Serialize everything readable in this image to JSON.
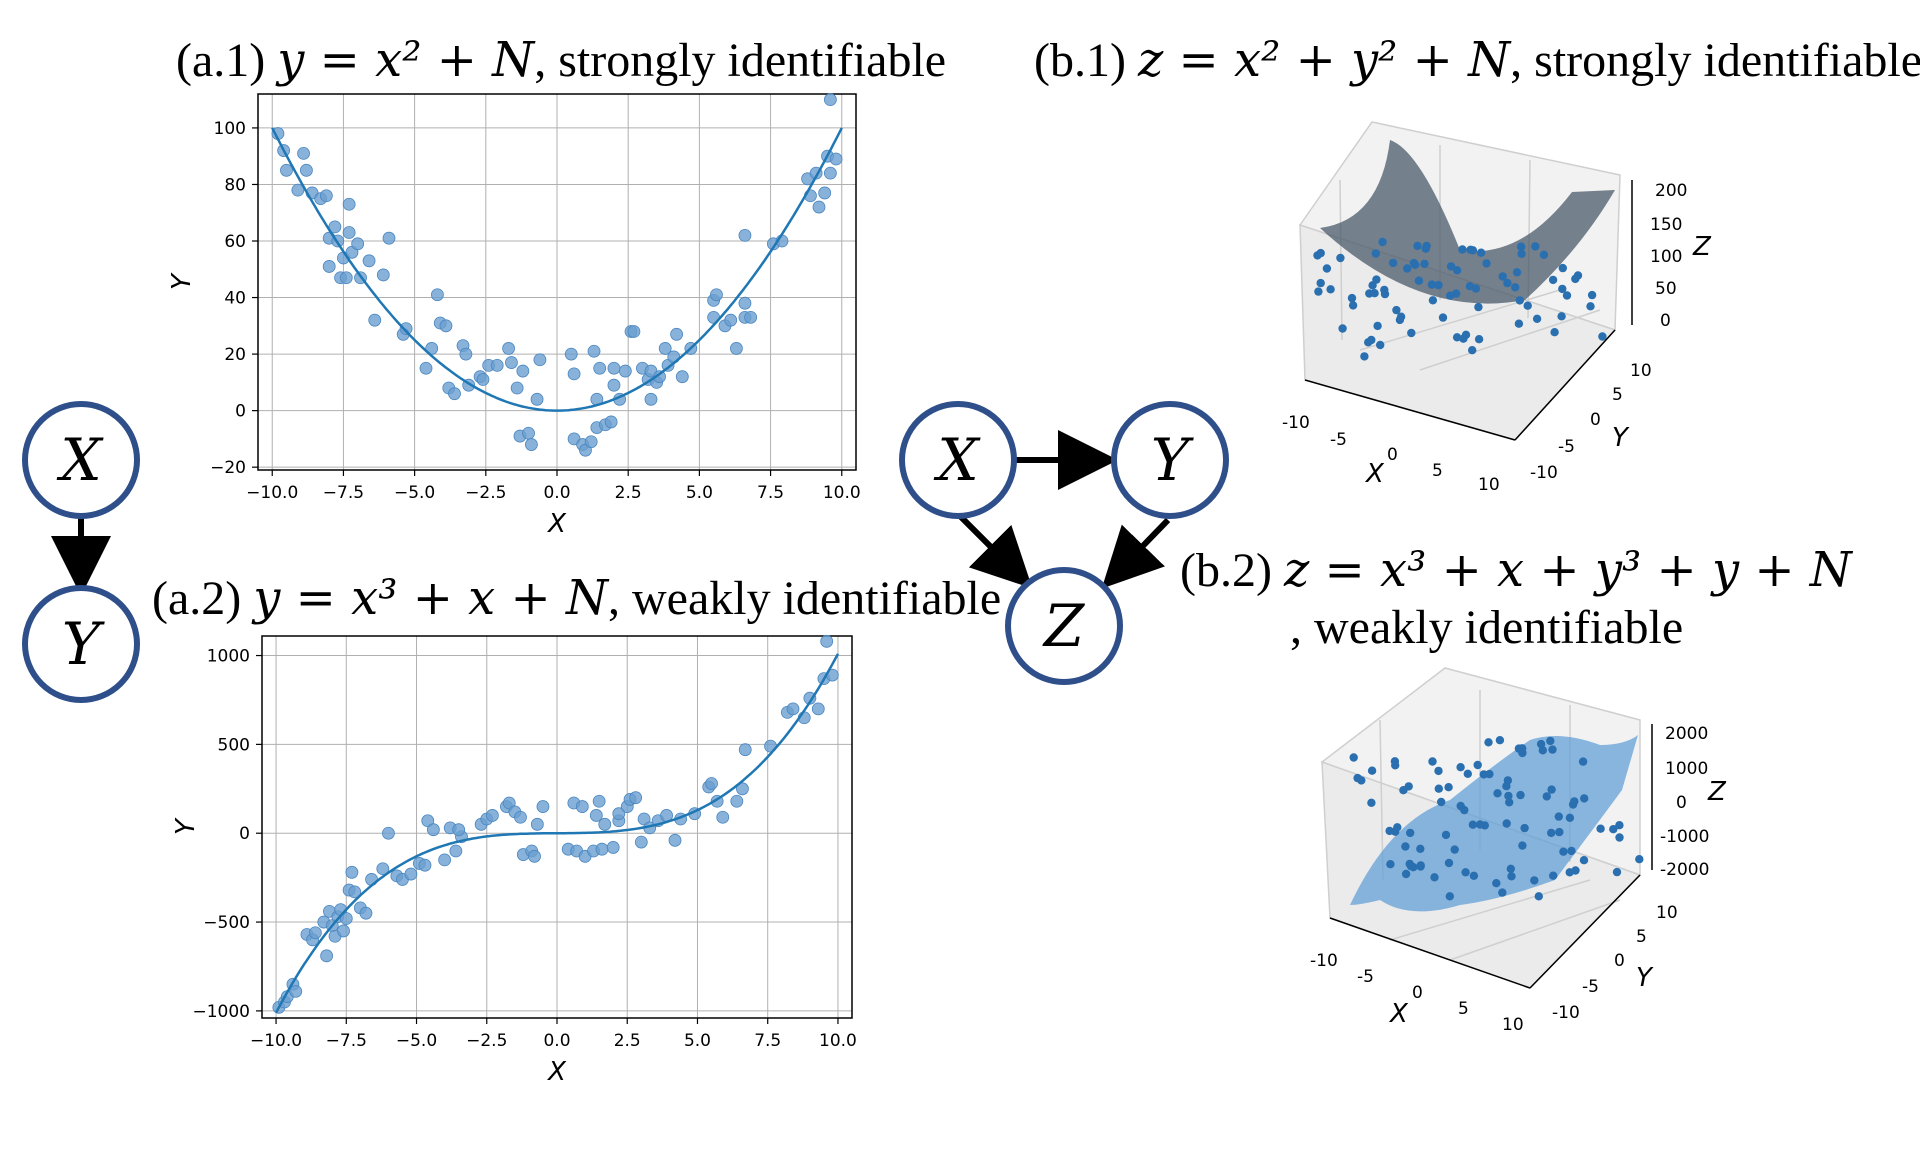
{
  "titles": {
    "a1": {
      "label": "(a.1)",
      "eq": "y = x² + N",
      "tail": ", strongly identifiable"
    },
    "a2": {
      "label": "(a.2)",
      "eq": "y = x³ + x + N",
      "tail": ", weakly identifiable"
    },
    "b1": {
      "label": "(b.1)",
      "eq": "z = x² + y² + N",
      "tail": ", strongly identifiable"
    },
    "b2": {
      "label": "(b.2)",
      "eq": "z = x³ + x + y³ + y + N",
      "tail": ", weakly identifiable"
    }
  },
  "graph_a": {
    "nodes": [
      "X",
      "Y"
    ],
    "edges": [
      [
        "X",
        "Y"
      ]
    ]
  },
  "graph_b": {
    "nodes": [
      "X",
      "Y",
      "Z"
    ],
    "edges": [
      [
        "X",
        "Y"
      ],
      [
        "X",
        "Z"
      ],
      [
        "Y",
        "Z"
      ]
    ]
  },
  "colors": {
    "curve": "#1f77b4",
    "point": "#6a9fd0",
    "node_border": "#2f4f8a",
    "grid": "#b0b0b0",
    "surface_b1": "#4a5a6a",
    "surface_b2": "#5b9bd5"
  },
  "chart_data": [
    {
      "id": "a1",
      "type": "scatter",
      "xlabel": "X",
      "ylabel": "Y",
      "xlim": [
        -10.5,
        10.5
      ],
      "ylim": [
        -21,
        112
      ],
      "xticks": [
        "-10.0",
        "-7.5",
        "-5.0",
        "-2.5",
        "0.0",
        "2.5",
        "5.0",
        "7.5",
        "10.0"
      ],
      "xtick_values": [
        -10,
        -7.5,
        -5,
        -2.5,
        0,
        2.5,
        5,
        7.5,
        10
      ],
      "yticks": [
        "100",
        "80",
        "60",
        "40",
        "20",
        "0",
        "-20"
      ],
      "ytick_values": [
        100,
        80,
        60,
        40,
        20,
        0,
        -20
      ],
      "grid": true,
      "curve": {
        "name": "",
        "function": "x^2"
      },
      "points": [
        [
          -9.8,
          98
        ],
        [
          -9.6,
          92
        ],
        [
          -9.5,
          85
        ],
        [
          -9.1,
          78
        ],
        [
          -8.9,
          91
        ],
        [
          -8.8,
          85
        ],
        [
          -8.6,
          77
        ],
        [
          -8.3,
          75
        ],
        [
          -8.1,
          76
        ],
        [
          -8.0,
          51
        ],
        [
          -8.0,
          61
        ],
        [
          -7.8,
          65
        ],
        [
          -7.7,
          60
        ],
        [
          -7.6,
          47
        ],
        [
          -7.5,
          54
        ],
        [
          -7.4,
          47
        ],
        [
          -7.3,
          73
        ],
        [
          -7.3,
          63
        ],
        [
          -7.2,
          56
        ],
        [
          -7.0,
          59
        ],
        [
          -6.9,
          47
        ],
        [
          -6.6,
          53
        ],
        [
          -6.4,
          32
        ],
        [
          -6.1,
          48
        ],
        [
          -5.9,
          61
        ],
        [
          -5.4,
          27
        ],
        [
          -5.3,
          29
        ],
        [
          -4.6,
          15
        ],
        [
          -4.4,
          22
        ],
        [
          -4.2,
          41
        ],
        [
          -4.1,
          31
        ],
        [
          -3.9,
          30
        ],
        [
          -3.8,
          8
        ],
        [
          -3.6,
          6
        ],
        [
          -3.3,
          23
        ],
        [
          -3.2,
          20
        ],
        [
          -3.1,
          9
        ],
        [
          -2.7,
          12
        ],
        [
          -2.6,
          11
        ],
        [
          -2.4,
          16
        ],
        [
          -2.1,
          16
        ],
        [
          -1.7,
          22
        ],
        [
          -1.6,
          17
        ],
        [
          -1.4,
          8
        ],
        [
          -1.2,
          14
        ],
        [
          -1.3,
          -9
        ],
        [
          -1.0,
          -8
        ],
        [
          -0.9,
          -12
        ],
        [
          -0.7,
          4
        ],
        [
          -0.6,
          18
        ],
        [
          0.5,
          20
        ],
        [
          0.6,
          -10
        ],
        [
          0.6,
          13
        ],
        [
          0.9,
          -12
        ],
        [
          1.0,
          -14
        ],
        [
          1.2,
          -11
        ],
        [
          1.3,
          21
        ],
        [
          1.4,
          4
        ],
        [
          1.4,
          -6
        ],
        [
          1.5,
          15
        ],
        [
          1.7,
          -5
        ],
        [
          1.9,
          -4
        ],
        [
          2.0,
          15
        ],
        [
          2.0,
          9
        ],
        [
          2.2,
          4
        ],
        [
          2.4,
          14
        ],
        [
          2.6,
          28
        ],
        [
          2.7,
          28
        ],
        [
          3.0,
          15
        ],
        [
          3.2,
          11
        ],
        [
          3.3,
          14
        ],
        [
          3.3,
          4
        ],
        [
          3.5,
          10
        ],
        [
          3.6,
          12
        ],
        [
          3.8,
          22
        ],
        [
          3.9,
          16
        ],
        [
          4.1,
          19
        ],
        [
          4.2,
          27
        ],
        [
          4.4,
          12
        ],
        [
          4.7,
          22
        ],
        [
          5.5,
          33
        ],
        [
          5.5,
          39
        ],
        [
          5.6,
          41
        ],
        [
          5.9,
          30
        ],
        [
          6.1,
          32
        ],
        [
          6.3,
          22
        ],
        [
          6.6,
          33
        ],
        [
          6.6,
          38
        ],
        [
          6.8,
          33
        ],
        [
          6.6,
          62
        ],
        [
          7.6,
          59
        ],
        [
          7.9,
          60
        ],
        [
          8.8,
          82
        ],
        [
          8.9,
          76
        ],
        [
          9.1,
          84
        ],
        [
          9.2,
          72
        ],
        [
          9.4,
          77
        ],
        [
          9.5,
          90
        ],
        [
          9.6,
          84
        ],
        [
          9.8,
          89
        ],
        [
          9.6,
          110
        ]
      ]
    },
    {
      "id": "a2",
      "type": "scatter",
      "xlabel": "X",
      "ylabel": "Y",
      "xlim": [
        -10.5,
        10.5
      ],
      "ylim": [
        -1040,
        1110
      ],
      "xticks": [
        "-10.0",
        "-7.5",
        "-5.0",
        "-2.5",
        "0.0",
        "2.5",
        "5.0",
        "7.5",
        "10.0"
      ],
      "xtick_values": [
        -10,
        -7.5,
        -5,
        -2.5,
        0,
        2.5,
        5,
        7.5,
        10
      ],
      "yticks": [
        "1000",
        "500",
        "0",
        "-500",
        "-1000"
      ],
      "ytick_values": [
        1000,
        500,
        0,
        -500,
        -1000
      ],
      "grid": true,
      "curve": {
        "name": "",
        "function": "x^3 + x"
      },
      "points": [
        [
          -9.9,
          -980
        ],
        [
          -9.7,
          -950
        ],
        [
          -9.6,
          -920
        ],
        [
          -9.4,
          -850
        ],
        [
          -9.3,
          -890
        ],
        [
          -8.9,
          -570
        ],
        [
          -8.7,
          -600
        ],
        [
          -8.6,
          -560
        ],
        [
          -8.3,
          -500
        ],
        [
          -8.2,
          -690
        ],
        [
          -8.1,
          -440
        ],
        [
          -8.0,
          -520
        ],
        [
          -7.9,
          -580
        ],
        [
          -7.8,
          -470
        ],
        [
          -7.7,
          -430
        ],
        [
          -7.6,
          -550
        ],
        [
          -7.5,
          -480
        ],
        [
          -7.4,
          -320
        ],
        [
          -7.3,
          -220
        ],
        [
          -7.2,
          -330
        ],
        [
          -7.0,
          -420
        ],
        [
          -6.8,
          -450
        ],
        [
          -6.6,
          -260
        ],
        [
          -6.2,
          -200
        ],
        [
          -6.0,
          0
        ],
        [
          -5.7,
          -240
        ],
        [
          -5.5,
          -260
        ],
        [
          -5.2,
          -230
        ],
        [
          -4.9,
          -170
        ],
        [
          -4.7,
          -180
        ],
        [
          -4.6,
          70
        ],
        [
          -4.4,
          20
        ],
        [
          -4.0,
          -150
        ],
        [
          -3.8,
          30
        ],
        [
          -3.6,
          -100
        ],
        [
          -3.4,
          -20
        ],
        [
          -3.5,
          20
        ],
        [
          -2.7,
          50
        ],
        [
          -2.5,
          80
        ],
        [
          -2.3,
          100
        ],
        [
          -1.8,
          150
        ],
        [
          -1.7,
          170
        ],
        [
          -1.5,
          120
        ],
        [
          -1.3,
          90
        ],
        [
          -1.2,
          -120
        ],
        [
          -0.9,
          -100
        ],
        [
          -0.8,
          -130
        ],
        [
          -0.7,
          50
        ],
        [
          -0.5,
          150
        ],
        [
          0.4,
          -90
        ],
        [
          0.6,
          170
        ],
        [
          0.7,
          -100
        ],
        [
          0.9,
          150
        ],
        [
          1.0,
          -130
        ],
        [
          1.3,
          -100
        ],
        [
          1.4,
          100
        ],
        [
          1.5,
          180
        ],
        [
          1.6,
          -90
        ],
        [
          1.7,
          50
        ],
        [
          2.0,
          -80
        ],
        [
          2.2,
          70
        ],
        [
          2.2,
          110
        ],
        [
          2.5,
          150
        ],
        [
          2.6,
          190
        ],
        [
          2.8,
          200
        ],
        [
          3.0,
          -50
        ],
        [
          3.1,
          80
        ],
        [
          3.3,
          30
        ],
        [
          3.6,
          70
        ],
        [
          3.9,
          100
        ],
        [
          4.2,
          -40
        ],
        [
          4.4,
          80
        ],
        [
          4.9,
          110
        ],
        [
          5.4,
          260
        ],
        [
          5.5,
          280
        ],
        [
          5.7,
          180
        ],
        [
          5.9,
          90
        ],
        [
          6.4,
          180
        ],
        [
          6.6,
          250
        ],
        [
          6.7,
          470
        ],
        [
          7.6,
          490
        ],
        [
          8.2,
          680
        ],
        [
          8.4,
          700
        ],
        [
          8.8,
          650
        ],
        [
          9.0,
          760
        ],
        [
          9.3,
          700
        ],
        [
          9.5,
          870
        ],
        [
          9.6,
          1080
        ],
        [
          9.8,
          890
        ]
      ]
    },
    {
      "id": "b1",
      "type": "scatter3d",
      "xlabel": "X",
      "ylabel": "Y",
      "zlabel": "Z",
      "xticks": [
        "-10",
        "-5",
        "0",
        "5",
        "10"
      ],
      "yticks": [
        "10",
        "5",
        "0",
        "-5",
        "-10"
      ],
      "zticks": [
        "200",
        "150",
        "100",
        "50",
        "0"
      ],
      "surface": "x^2 + y^2"
    },
    {
      "id": "b2",
      "type": "scatter3d",
      "xlabel": "X",
      "ylabel": "Y",
      "zlabel": "Z",
      "xticks": [
        "-10",
        "-5",
        "0",
        "5",
        "10"
      ],
      "yticks": [
        "10",
        "5",
        "0",
        "-5",
        "-10"
      ],
      "zticks": [
        "2000",
        "1000",
        "0",
        "-1000",
        "-2000"
      ],
      "surface": "x^3 + x + y^3 + y"
    }
  ]
}
